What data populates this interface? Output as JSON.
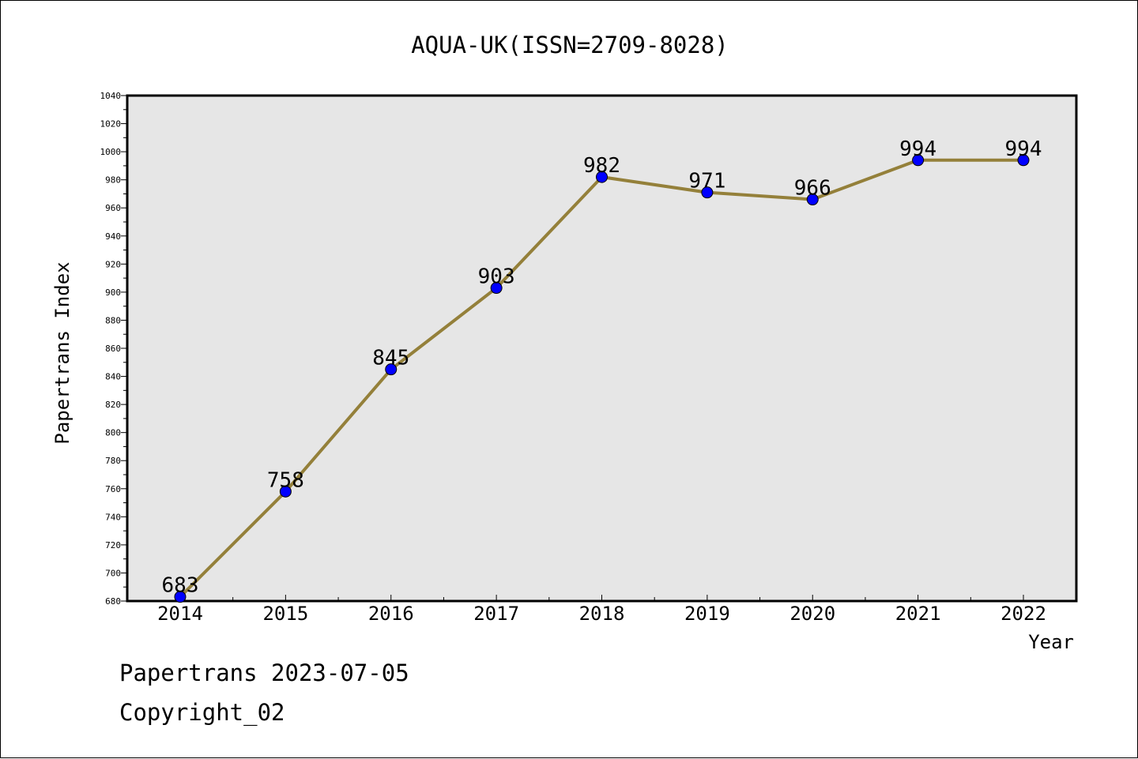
{
  "chart_data": {
    "type": "line",
    "title": "AQUA-UK(ISSN=2709-8028)",
    "xlabel": "Year",
    "ylabel": "Papertrans Index",
    "categories": [
      "2014",
      "2015",
      "2016",
      "2017",
      "2018",
      "2019",
      "2020",
      "2021",
      "2022"
    ],
    "series": [
      {
        "values": [
          683,
          758,
          845,
          903,
          982,
          971,
          966,
          994,
          994
        ],
        "labels": [
          "683",
          "758",
          "845",
          "903",
          "982",
          "971",
          "966",
          "994",
          "994"
        ],
        "line_color": "#94803a",
        "marker_color": "#0000ff"
      }
    ],
    "ylim": [
      680,
      1040
    ],
    "yticks": [
      "680",
      "700",
      "720",
      "740",
      "760",
      "780",
      "800",
      "820",
      "840",
      "860",
      "880",
      "900",
      "920",
      "940",
      "960",
      "980",
      "1000",
      "1020",
      "1040"
    ],
    "grid": false,
    "plot_background": "#e6e6e6"
  },
  "footer": {
    "line1": "Papertrans 2023-07-05",
    "line2": "Copyright_02"
  }
}
